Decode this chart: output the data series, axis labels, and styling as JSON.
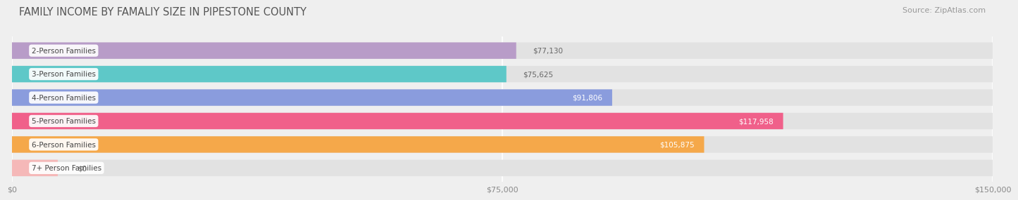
{
  "title": "FAMILY INCOME BY FAMALIY SIZE IN PIPESTONE COUNTY",
  "source": "Source: ZipAtlas.com",
  "categories": [
    "2-Person Families",
    "3-Person Families",
    "4-Person Families",
    "5-Person Families",
    "6-Person Families",
    "7+ Person Families"
  ],
  "values": [
    77130,
    75625,
    91806,
    117958,
    105875,
    0
  ],
  "bar_colors": [
    "#b89cc8",
    "#5ec8c8",
    "#8a9cdd",
    "#f0608a",
    "#f5a84a",
    "#f5b8b8"
  ],
  "value_colors": [
    "#666666",
    "#666666",
    "#ffffff",
    "#ffffff",
    "#ffffff",
    "#666666"
  ],
  "xlim": [
    0,
    150000
  ],
  "xticks": [
    0,
    75000,
    150000
  ],
  "xticklabels": [
    "$0",
    "$75,000",
    "$150,000"
  ],
  "background_color": "#efefef",
  "bar_background_color": "#e2e2e2",
  "title_fontsize": 10.5,
  "source_fontsize": 8,
  "label_fontsize": 7.5,
  "value_fontsize": 7.5,
  "tick_fontsize": 8
}
